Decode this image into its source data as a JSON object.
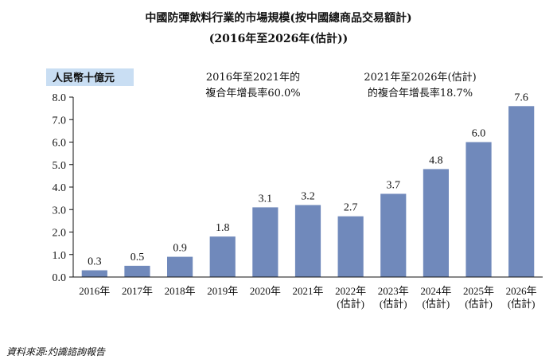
{
  "chart_data": {
    "type": "bar",
    "title": "中國防彈飲料行業的市場規模(按中國總商品交易額計)",
    "subtitle": "(2016年至2026年(估計))",
    "ylabel": "人民幣十億元",
    "xlabel": "",
    "ylim": [
      0,
      8
    ],
    "yticks": [
      "0.0",
      "1.0",
      "2.0",
      "3.0",
      "4.0",
      "5.0",
      "6.0",
      "7.0",
      "8.0"
    ],
    "grid": false,
    "categories": [
      [
        "2016年"
      ],
      [
        "2017年"
      ],
      [
        "2018年"
      ],
      [
        "2019年"
      ],
      [
        "2020年"
      ],
      [
        "2021年"
      ],
      [
        "2022年",
        "(估計)"
      ],
      [
        "2023年",
        "(估計)"
      ],
      [
        "2024年",
        "(估計)"
      ],
      [
        "2025年",
        "(估計)"
      ],
      [
        "2026年",
        "(估計)"
      ]
    ],
    "values": [
      0.3,
      0.5,
      0.9,
      1.8,
      3.1,
      3.2,
      2.7,
      3.7,
      4.8,
      6.0,
      7.6
    ],
    "value_labels": [
      "0.3",
      "0.5",
      "0.9",
      "1.8",
      "3.1",
      "3.2",
      "2.7",
      "3.7",
      "4.8",
      "6.0",
      "7.6"
    ],
    "annotations": [
      [
        "2016年至2021年的",
        "複合年增長率60.0%"
      ],
      [
        "2021年至2026年(估計)",
        "的複合年增長率18.7%"
      ]
    ],
    "bar_color": "#7089bb",
    "unit_box_color": "#c9def3"
  },
  "source": "資料來源:灼識諮詢報告"
}
